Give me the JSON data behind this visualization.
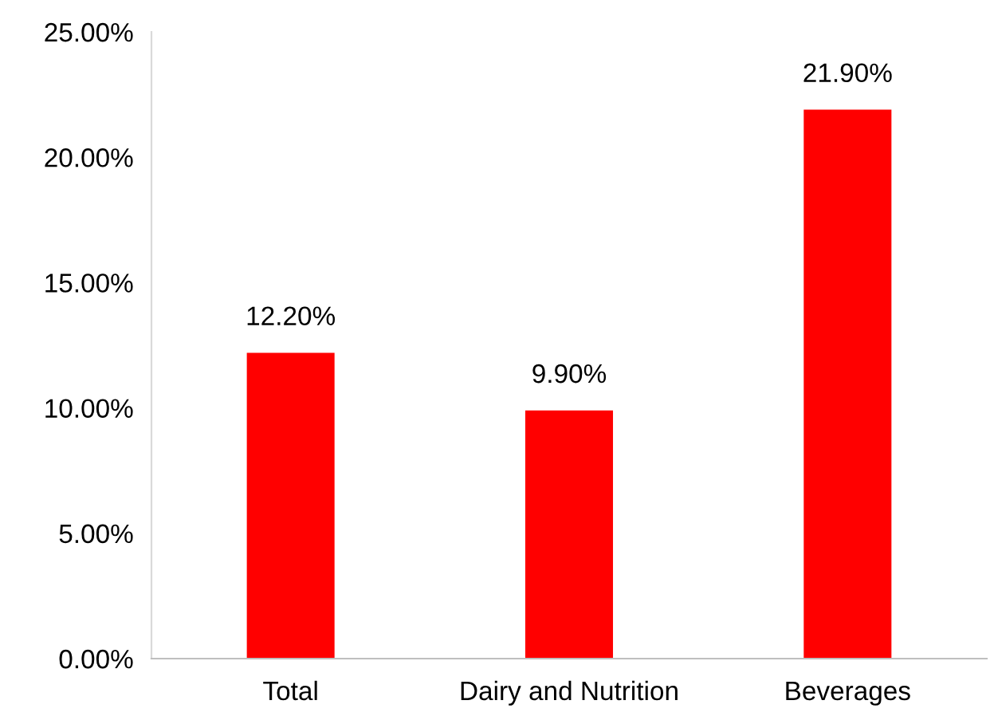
{
  "chart_data": {
    "type": "bar",
    "categories": [
      "Total",
      "Dairy and Nutrition",
      "Beverages"
    ],
    "values": [
      12.2,
      9.9,
      21.9
    ],
    "value_labels": [
      "12.20%",
      "9.90%",
      "21.90%"
    ],
    "color": "#ff0000",
    "ylim": [
      0,
      25
    ],
    "yticks": [
      {
        "value": 0,
        "label": "0.00%"
      },
      {
        "value": 5,
        "label": "5.00%"
      },
      {
        "value": 10,
        "label": "10.00%"
      },
      {
        "value": 15,
        "label": "15.00%"
      },
      {
        "value": 20,
        "label": "20.00%"
      },
      {
        "value": 25,
        "label": "25.00%"
      }
    ],
    "grid": false,
    "legend": false
  }
}
